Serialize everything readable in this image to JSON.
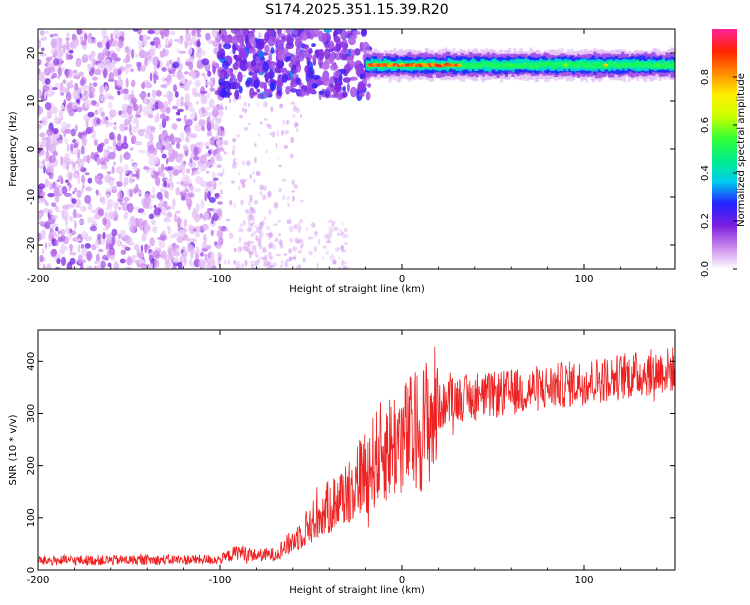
{
  "title": "S174.2025.351.15.39.R20",
  "chart_data": [
    {
      "type": "heatmap",
      "xlabel": "Height of straight line (km)",
      "ylabel": "Frequency (Hz)",
      "xlim": [
        -200,
        150
      ],
      "ylim": [
        -25,
        25
      ],
      "xticks": [
        "-200",
        "-100",
        "0",
        "100"
      ],
      "yticks": [
        "20",
        "10",
        "0",
        "-10",
        "-20"
      ],
      "colorbar": {
        "label": "Normalized spectral amplitude",
        "range": [
          0,
          1
        ],
        "ticks": [
          "0.0",
          "0.2",
          "0.4",
          "0.6",
          "0.8"
        ],
        "colors": [
          "#ffffff",
          "#cc88ee",
          "#7a1fe0",
          "#2222ff",
          "#00ccee",
          "#00ee88",
          "#33ff33",
          "#ccff00",
          "#ffee00",
          "#ff8800",
          "#ff2200",
          "#ff2299"
        ]
      },
      "band": {
        "center_hz": 17.5,
        "start_km": -20,
        "end_km": 150
      }
    },
    {
      "type": "line",
      "xlabel": "Height of straight line (km)",
      "ylabel": "SNR (10 * v/v)",
      "xlim": [
        -200,
        150
      ],
      "ylim": [
        0,
        460
      ],
      "xticks": [
        "-200",
        "-100",
        "0",
        "100"
      ],
      "yticks": [
        "0",
        "100",
        "200",
        "300",
        "400"
      ],
      "color": "#ee2222",
      "trend": [
        [
          -200,
          18
        ],
        [
          -100,
          20
        ],
        [
          -90,
          35
        ],
        [
          -80,
          28
        ],
        [
          -70,
          30
        ],
        [
          -60,
          55
        ],
        [
          -50,
          90
        ],
        [
          -40,
          120
        ],
        [
          -30,
          150
        ],
        [
          -20,
          190
        ],
        [
          -10,
          230
        ],
        [
          0,
          250
        ],
        [
          10,
          270
        ],
        [
          20,
          310
        ],
        [
          30,
          330
        ],
        [
          40,
          330
        ],
        [
          60,
          340
        ],
        [
          80,
          350
        ],
        [
          100,
          360
        ],
        [
          120,
          370
        ],
        [
          140,
          380
        ],
        [
          150,
          385
        ]
      ]
    }
  ]
}
